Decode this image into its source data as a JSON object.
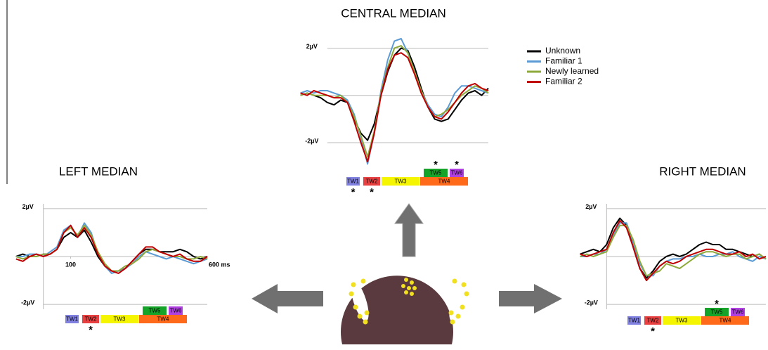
{
  "chart_data": [
    {
      "type": "line",
      "title": "CENTRAL MEDIAN",
      "legend": true,
      "y_axis_line": false,
      "x": [
        -100,
        -75,
        -50,
        -25,
        0,
        25,
        50,
        75,
        100,
        125,
        150,
        175,
        200,
        225,
        250,
        275,
        300,
        325,
        350,
        375,
        400,
        425,
        450,
        475,
        500,
        525,
        550,
        575,
        600
      ],
      "xlim": [
        -120,
        600
      ],
      "ylim": [
        -3.1,
        2.4
      ],
      "yticks": [
        {
          "value": 2,
          "label": "2µV"
        },
        {
          "value": -2,
          "label": "-2µV"
        }
      ],
      "series": [
        {
          "name": "Unknown",
          "color": "#000000",
          "values": [
            0,
            0.1,
            0,
            -0.1,
            -0.3,
            -0.4,
            -0.2,
            -0.3,
            -1.0,
            -1.6,
            -1.9,
            -1.2,
            0.0,
            1.0,
            1.7,
            2.0,
            1.9,
            1.2,
            0.3,
            -0.5,
            -1.0,
            -1.1,
            -1.0,
            -0.6,
            -0.2,
            0.1,
            0.2,
            0.0,
            0.3
          ]
        },
        {
          "name": "Familiar 1",
          "color": "#5b9bd5",
          "values": [
            0.1,
            0.2,
            0.1,
            0.2,
            0.2,
            0.1,
            0,
            -0.2,
            -0.8,
            -1.8,
            -2.9,
            -1.6,
            0.2,
            1.5,
            2.3,
            2.4,
            1.8,
            1.0,
            0.2,
            -0.4,
            -0.8,
            -0.9,
            -0.5,
            0.1,
            0.4,
            0.4,
            0.3,
            0.2,
            0.1
          ]
        },
        {
          "name": "Newly learned",
          "color": "#8faa3c",
          "values": [
            0,
            0.1,
            0,
            0,
            0,
            -0.1,
            0,
            -0.3,
            -0.9,
            -1.7,
            -2.6,
            -1.5,
            0.1,
            1.2,
            2.0,
            2.1,
            1.8,
            1.0,
            0.2,
            -0.5,
            -0.9,
            -0.8,
            -0.6,
            -0.3,
            0,
            0.2,
            0.4,
            0.3,
            0.1
          ]
        },
        {
          "name": "Familiar 2",
          "color": "#c00000",
          "values": [
            0.1,
            0,
            0.2,
            0.1,
            0,
            -0.1,
            -0.1,
            -0.3,
            -1.1,
            -2.0,
            -2.8,
            -1.6,
            0.0,
            1.1,
            1.7,
            1.8,
            1.6,
            0.9,
            0.1,
            -0.5,
            -0.9,
            -1.0,
            -0.7,
            -0.3,
            0.1,
            0.4,
            0.5,
            0.3,
            0.2
          ]
        }
      ],
      "significance_mark": "*",
      "time_windows": [
        {
          "label": "TW1",
          "color": "#8080e0",
          "significant": true
        },
        {
          "label": "TW2",
          "color": "#e84040",
          "significant": true
        },
        {
          "label": "TW3",
          "color": "#f5f500",
          "significant": false
        },
        {
          "label": "TW4",
          "color": "#ff6a1a",
          "significant": false
        },
        {
          "label": "TW5",
          "color": "#16a32a",
          "significant": true
        },
        {
          "label": "TW6",
          "color": "#b040e0",
          "significant": true
        }
      ]
    },
    {
      "type": "line",
      "title": "LEFT MEDIAN",
      "legend": false,
      "y_axis_line": true,
      "x": [
        -100,
        -75,
        -50,
        -25,
        0,
        25,
        50,
        75,
        100,
        125,
        150,
        175,
        200,
        225,
        250,
        275,
        300,
        325,
        350,
        375,
        400,
        425,
        450,
        475,
        500,
        525,
        550,
        575,
        600
      ],
      "xlim": [
        -120,
        600
      ],
      "ylim": [
        -2.2,
        2.2
      ],
      "xticks": [
        100,
        {
          "value": 600,
          "label": "600 ms"
        }
      ],
      "yticks": [
        {
          "value": 2,
          "label": "2µV"
        },
        {
          "value": -2,
          "label": "-2µV"
        }
      ],
      "series": [
        {
          "name": "Unknown",
          "color": "#000000",
          "values": [
            0,
            0.1,
            0,
            0,
            0.1,
            0.1,
            0.3,
            0.8,
            1.0,
            0.8,
            1.1,
            0.6,
            0,
            -0.4,
            -0.6,
            -0.6,
            -0.5,
            -0.2,
            0.1,
            0.3,
            0.3,
            0.2,
            0.2,
            0.2,
            0.3,
            0.2,
            0,
            -0.1,
            0
          ]
        },
        {
          "name": "Familiar 1",
          "color": "#5b9bd5",
          "values": [
            0,
            0,
            0.1,
            0.1,
            0,
            0.2,
            0.4,
            1.1,
            1.3,
            0.8,
            1.4,
            1.0,
            0.1,
            -0.4,
            -0.7,
            -0.6,
            -0.5,
            -0.3,
            0,
            0.2,
            0.1,
            0,
            -0.1,
            0,
            -0.1,
            -0.2,
            -0.3,
            -0.2,
            -0.1
          ]
        },
        {
          "name": "Newly learned",
          "color": "#8faa3c",
          "values": [
            0,
            -0.1,
            0,
            0,
            0.1,
            0.1,
            0.3,
            1.0,
            1.2,
            0.9,
            1.3,
            0.9,
            0.2,
            -0.3,
            -0.6,
            -0.6,
            -0.4,
            -0.3,
            -0.1,
            0.2,
            0.3,
            0.2,
            0.1,
            0,
            0,
            -0.1,
            -0.1,
            0,
            -0.1
          ]
        },
        {
          "name": "Familiar 2",
          "color": "#c00000",
          "values": [
            -0.1,
            -0.2,
            0,
            0.1,
            0,
            0.1,
            0.3,
            1.0,
            1.3,
            0.8,
            1.2,
            0.8,
            0.1,
            -0.4,
            -0.6,
            -0.7,
            -0.5,
            -0.2,
            0.1,
            0.4,
            0.4,
            0.2,
            0.1,
            0,
            0.1,
            -0.1,
            -0.2,
            -0.2,
            0
          ]
        }
      ],
      "significance_mark": "*",
      "time_windows": [
        {
          "label": "TW1",
          "color": "#8080e0",
          "significant": false
        },
        {
          "label": "TW2",
          "color": "#e84040",
          "significant": true
        },
        {
          "label": "TW3",
          "color": "#f5f500",
          "significant": false
        },
        {
          "label": "TW4",
          "color": "#ff6a1a",
          "significant": false
        },
        {
          "label": "TW5",
          "color": "#16a32a",
          "significant": false
        },
        {
          "label": "TW6",
          "color": "#b040e0",
          "significant": false
        }
      ]
    },
    {
      "type": "line",
      "title": "RIGHT MEDIAN",
      "legend": false,
      "y_axis_line": true,
      "x": [
        -100,
        -75,
        -50,
        -25,
        0,
        25,
        50,
        75,
        100,
        125,
        150,
        175,
        200,
        225,
        250,
        275,
        300,
        325,
        350,
        375,
        400,
        425,
        450,
        475,
        500,
        525,
        550,
        575,
        600
      ],
      "xlim": [
        -120,
        600
      ],
      "ylim": [
        -2.2,
        2.2
      ],
      "yticks": [
        {
          "value": 2,
          "label": "2µV"
        },
        {
          "value": -2,
          "label": "-2µV"
        }
      ],
      "series": [
        {
          "name": "Unknown",
          "color": "#000000",
          "values": [
            0.1,
            0.2,
            0.3,
            0.2,
            0.5,
            1.2,
            1.6,
            1.3,
            0.4,
            -0.5,
            -0.9,
            -0.6,
            -0.2,
            0,
            0.1,
            0,
            0.1,
            0.3,
            0.5,
            0.6,
            0.5,
            0.5,
            0.3,
            0.3,
            0.2,
            0.1,
            0,
            0.1,
            -0.1
          ]
        },
        {
          "name": "Familiar 1",
          "color": "#5b9bd5",
          "values": [
            0,
            0,
            0.1,
            0.1,
            0.3,
            0.9,
            1.4,
            1.4,
            0.6,
            -0.3,
            -0.8,
            -0.8,
            -0.4,
            -0.2,
            -0.1,
            -0.1,
            0,
            0,
            0.1,
            0,
            0,
            0.1,
            0.1,
            0.2,
            0,
            -0.1,
            -0.2,
            0,
            -0.1
          ]
        },
        {
          "name": "Newly learned",
          "color": "#8faa3c",
          "values": [
            0,
            0.1,
            0,
            0.1,
            0.2,
            0.8,
            1.3,
            1.3,
            0.7,
            -0.2,
            -0.8,
            -0.7,
            -0.6,
            -0.3,
            -0.4,
            -0.5,
            -0.3,
            -0.1,
            0.1,
            0.2,
            0.2,
            0.1,
            0,
            0.1,
            0.1,
            -0.1,
            0,
            0.1,
            -0.1
          ]
        },
        {
          "name": "Familiar 2",
          "color": "#c00000",
          "values": [
            0.1,
            0,
            0.1,
            0.2,
            0.3,
            1.0,
            1.5,
            1.2,
            0.4,
            -0.5,
            -1.0,
            -0.7,
            -0.4,
            -0.2,
            -0.3,
            -0.2,
            0,
            0.1,
            0.2,
            0.3,
            0.3,
            0.2,
            0.1,
            0.1,
            0.2,
            0,
            0.1,
            -0.1,
            0
          ]
        }
      ],
      "significance_mark": "*",
      "time_windows": [
        {
          "label": "TW1",
          "color": "#8080e0",
          "significant": false
        },
        {
          "label": "TW2",
          "color": "#e84040",
          "significant": true
        },
        {
          "label": "TW3",
          "color": "#f5f500",
          "significant": false
        },
        {
          "label": "TW4",
          "color": "#ff6a1a",
          "significant": false
        },
        {
          "label": "TW5",
          "color": "#16a32a",
          "significant": true
        },
        {
          "label": "TW6",
          "color": "#b040e0",
          "significant": false
        }
      ]
    }
  ]
}
